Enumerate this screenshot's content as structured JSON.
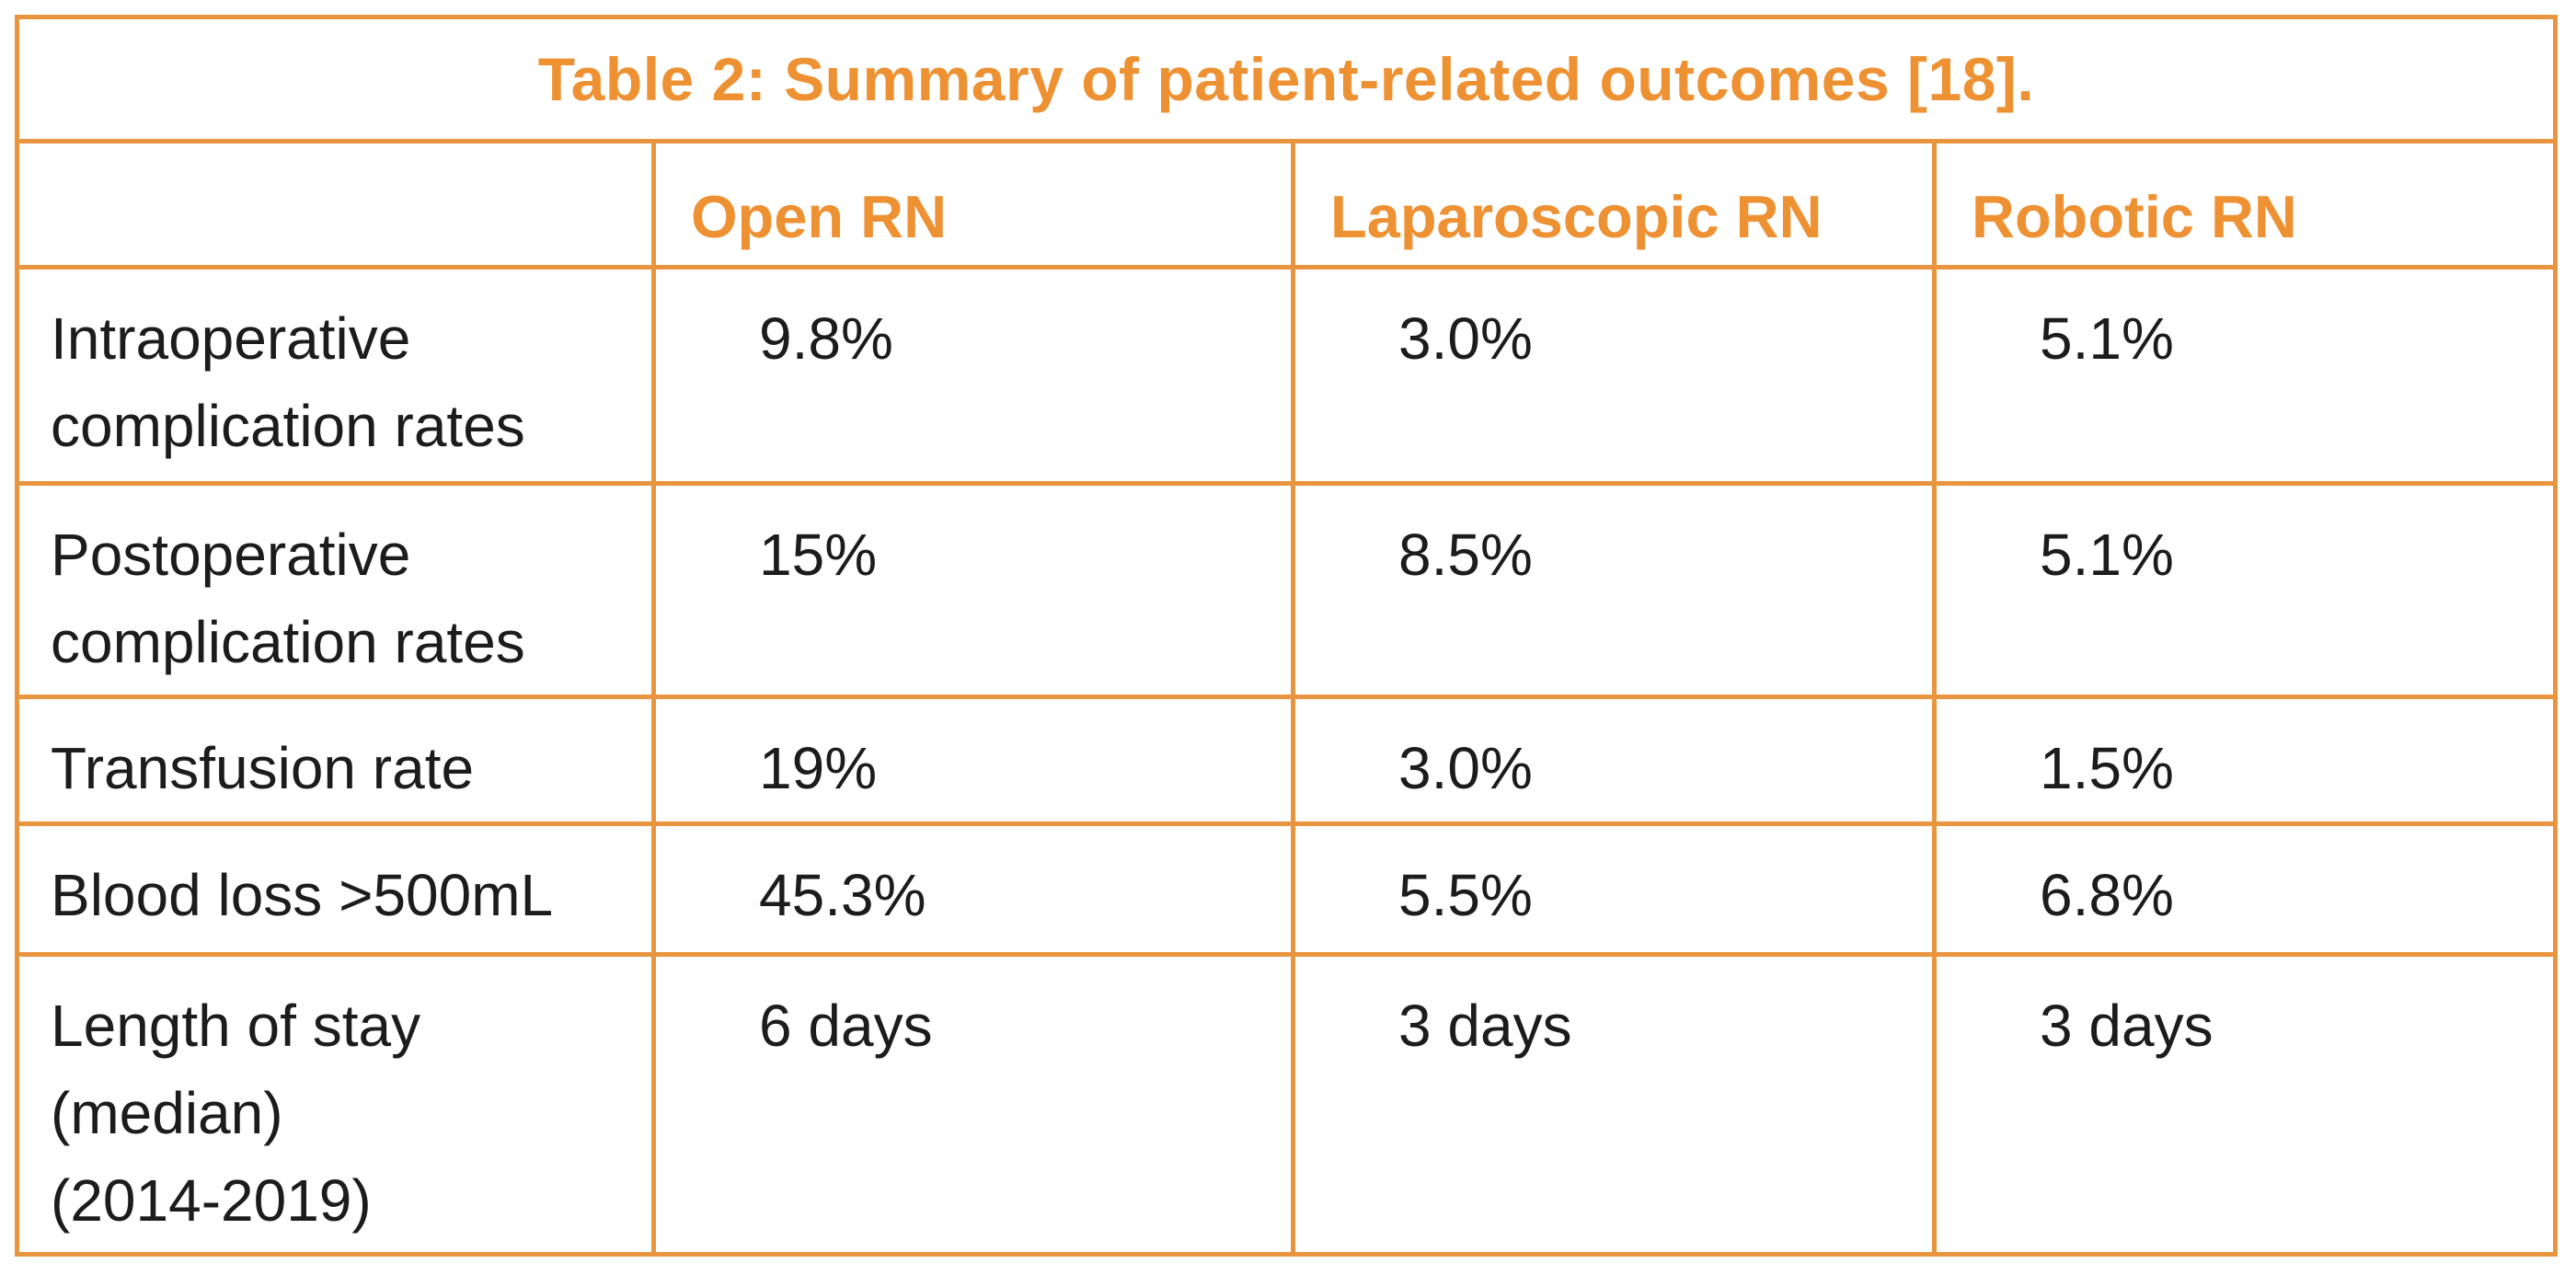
{
  "table": {
    "title": "Table 2: Summary of patient-related outcomes [18].",
    "columns": [
      "",
      "Open RN",
      "Laparoscopic RN",
      "Robotic RN"
    ],
    "rows": [
      {
        "label": "Intraoperative\ncomplication rates",
        "name": "intraoperative-complication-rates",
        "values": [
          "9.8%",
          "3.0%",
          "5.1%"
        ]
      },
      {
        "label": "Postoperative\ncomplication rates",
        "name": "postoperative-complication-rates",
        "values": [
          "15%",
          "8.5%",
          "5.1%"
        ]
      },
      {
        "label": "Transfusion rate",
        "name": "transfusion-rate",
        "values": [
          "19%",
          "3.0%",
          "1.5%"
        ]
      },
      {
        "label": "Blood loss >500mL",
        "name": "blood-loss-over-500ml",
        "values": [
          "45.3%",
          "5.5%",
          "6.8%"
        ]
      },
      {
        "label": "Length of stay\n(median)\n(2014-2019)",
        "name": "length-of-stay-median",
        "values": [
          "6 days",
          "3 days",
          "3 days"
        ]
      }
    ],
    "colors": {
      "accent_text": "#ED9133",
      "border": "#E9953F",
      "body_text": "#1c1c1c",
      "background": "#ffffff"
    }
  },
  "chart_data": {
    "type": "table",
    "title": "Table 2: Summary of patient-related outcomes [18].",
    "columns": [
      "",
      "Open RN",
      "Laparoscopic RN",
      "Robotic RN"
    ],
    "rows": [
      [
        "Intraoperative complication rates",
        "9.8%",
        "3.0%",
        "5.1%"
      ],
      [
        "Postoperative complication rates",
        "15%",
        "8.5%",
        "5.1%"
      ],
      [
        "Transfusion rate",
        "19%",
        "3.0%",
        "1.5%"
      ],
      [
        "Blood loss >500mL",
        "45.3%",
        "5.5%",
        "6.8%"
      ],
      [
        "Length of stay (median) (2014-2019)",
        "6 days",
        "3 days",
        "3 days"
      ]
    ]
  }
}
